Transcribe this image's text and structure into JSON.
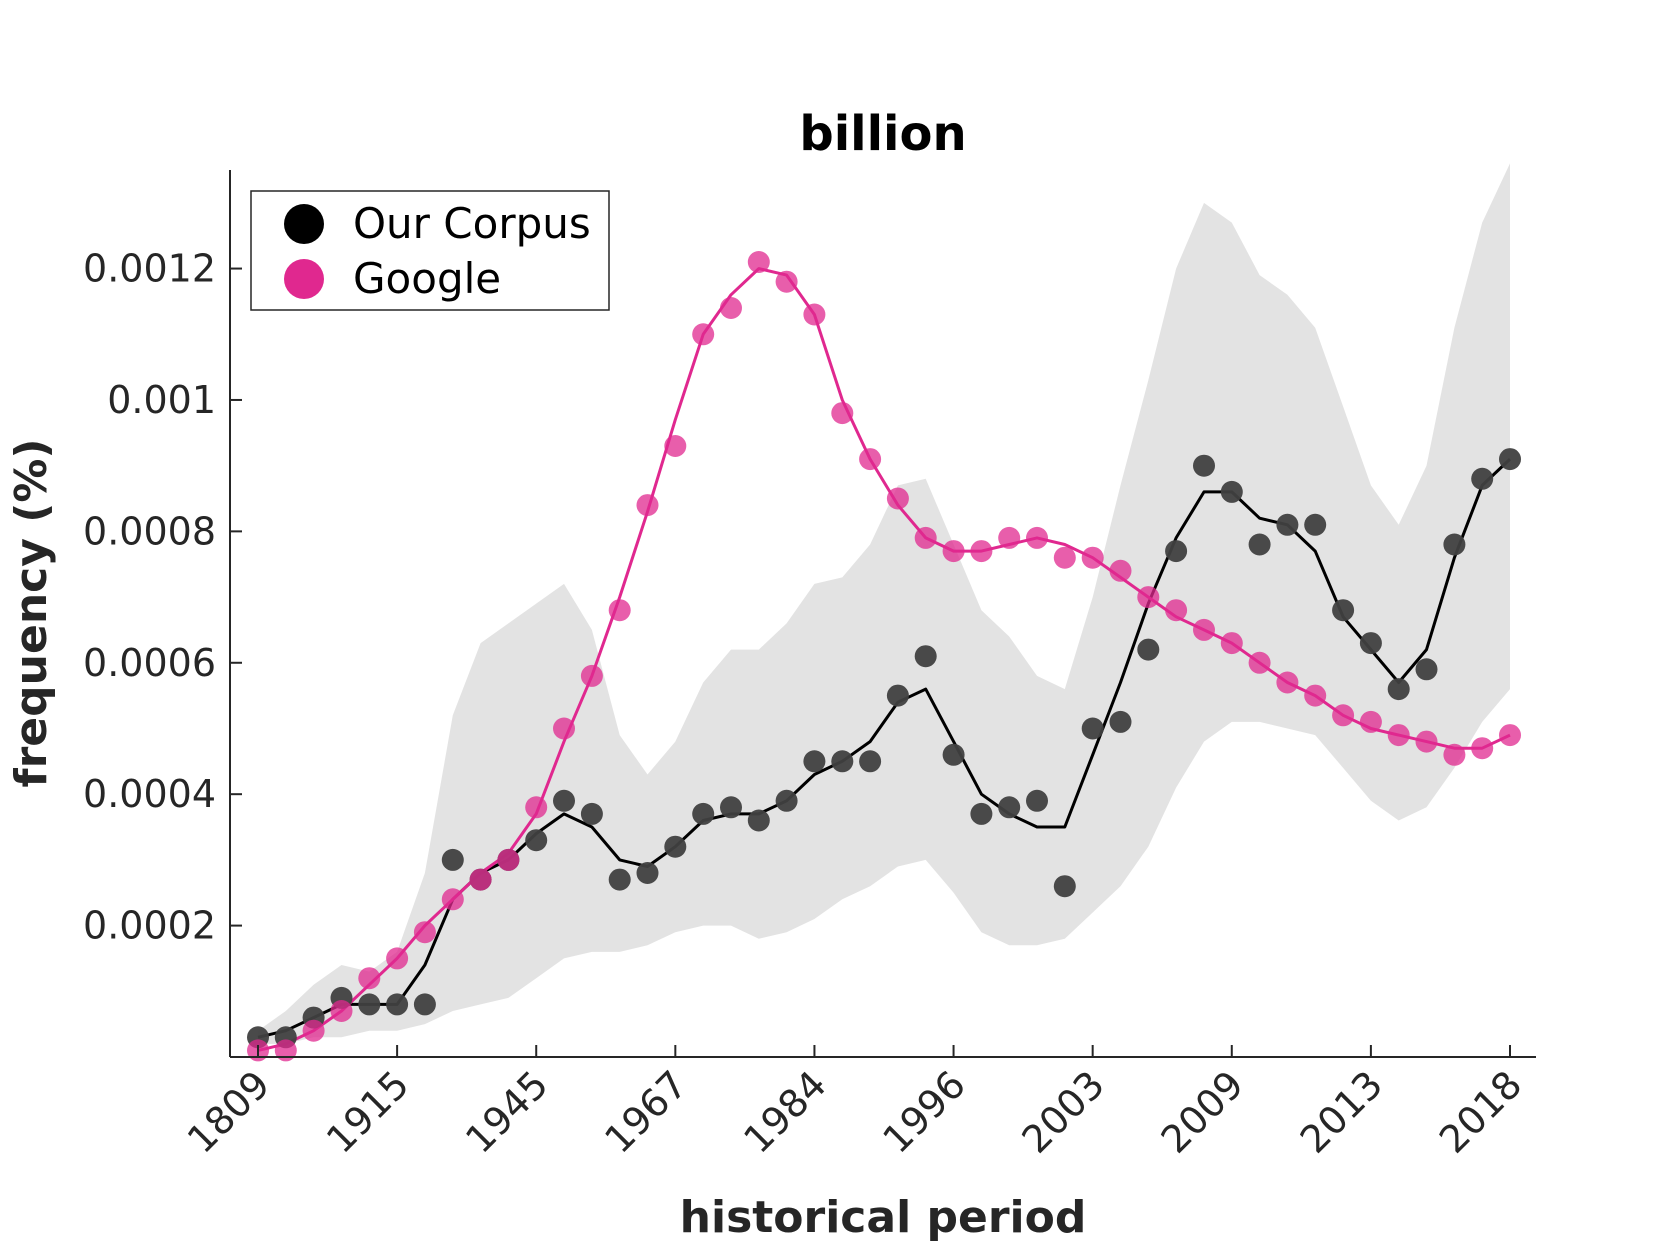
{
  "chart_data": {
    "type": "scatter",
    "title": "billion",
    "xlabel": "historical period",
    "ylabel": "frequency (%)",
    "x_tick_labels": [
      "1809",
      "1915",
      "1945",
      "1967",
      "1984",
      "1996",
      "2003",
      "2009",
      "2013",
      "2018"
    ],
    "y_ticks": [
      0.0002,
      0.0004,
      0.0006,
      0.0008,
      0.001,
      0.0012
    ],
    "y_tick_labels": [
      "0.0002",
      "0.0004",
      "0.0006",
      "0.0008",
      "0.001",
      "0.0012"
    ],
    "ylim": [
      0,
      0.00135
    ],
    "grid": false,
    "legend_position": "top-left",
    "colors": {
      "corpus": "#000000",
      "corpus_marker": "#404040",
      "google": "#e0288f",
      "band": "#e3e3e3"
    },
    "series": [
      {
        "name": "Our Corpus",
        "kind": "points",
        "values": [
          3e-05,
          3e-05,
          6e-05,
          9e-05,
          8e-05,
          8e-05,
          8e-05,
          0.0003,
          0.00027,
          0.0003,
          0.00033,
          0.00039,
          0.00037,
          0.00027,
          0.00028,
          0.00032,
          0.00037,
          0.00038,
          0.00036,
          0.00039,
          0.00045,
          0.00045,
          0.00045,
          0.00055,
          0.00061,
          0.00046,
          0.00037,
          0.00038,
          0.00039,
          0.00026,
          0.0005,
          0.00051,
          0.00062,
          0.00077,
          0.0009,
          0.00086,
          0.00078,
          0.00081,
          0.00081,
          0.00068,
          0.00063,
          0.00056,
          0.00059,
          0.00078,
          0.00088,
          0.00091
        ]
      },
      {
        "name": "Google",
        "kind": "points",
        "values": [
          1e-05,
          1e-05,
          4e-05,
          7e-05,
          0.00012,
          0.00015,
          0.00019,
          0.00024,
          0.00027,
          0.0003,
          0.00038,
          0.0005,
          0.00058,
          0.00068,
          0.00084,
          0.00093,
          0.0011,
          0.00114,
          0.00121,
          0.00118,
          0.00113,
          0.00098,
          0.00091,
          0.00085,
          0.00079,
          0.00077,
          0.00077,
          0.00079,
          0.00079,
          0.00076,
          0.00076,
          0.00074,
          0.0007,
          0.00068,
          0.00065,
          0.00063,
          0.0006,
          0.00057,
          0.00055,
          0.00052,
          0.00051,
          0.00049,
          0.00048,
          0.00046,
          0.00047,
          0.00049
        ]
      },
      {
        "kind": "line",
        "values": [
          3e-05,
          4e-05,
          6e-05,
          8e-05,
          8e-05,
          8e-05,
          0.00014,
          0.00024,
          0.00028,
          0.0003,
          0.00034,
          0.00037,
          0.00035,
          0.0003,
          0.00029,
          0.00032,
          0.00036,
          0.00037,
          0.00037,
          0.00039,
          0.00043,
          0.00045,
          0.00048,
          0.00054,
          0.00056,
          0.00048,
          0.0004,
          0.00037,
          0.00035,
          0.00035,
          0.00046,
          0.00057,
          0.00069,
          0.00079,
          0.00086,
          0.00086,
          0.00082,
          0.00081,
          0.00077,
          0.00067,
          0.00062,
          0.00057,
          0.00062,
          0.00076,
          0.00087,
          0.00091
        ]
      },
      {
        "kind": "line",
        "values": [
          1e-05,
          2e-05,
          4e-05,
          7e-05,
          0.00011,
          0.00015,
          0.0002,
          0.00024,
          0.00028,
          0.00031,
          0.00037,
          0.00048,
          0.00058,
          0.0007,
          0.00083,
          0.00097,
          0.0011,
          0.00116,
          0.0012,
          0.00119,
          0.00113,
          0.001,
          0.00091,
          0.00084,
          0.00079,
          0.00077,
          0.00077,
          0.00078,
          0.00079,
          0.00078,
          0.00076,
          0.00073,
          0.0007,
          0.00067,
          0.00065,
          0.00063,
          0.0006,
          0.00057,
          0.00055,
          0.00052,
          0.0005,
          0.00049,
          0.00048,
          0.00047,
          0.00047,
          0.00049
        ]
      },
      {
        "kind": "band-upper",
        "values": [
          4e-05,
          7e-05,
          0.00011,
          0.00014,
          0.00013,
          0.00016,
          0.00028,
          0.00052,
          0.00063,
          0.00066,
          0.00069,
          0.00072,
          0.00065,
          0.00049,
          0.00043,
          0.00048,
          0.00057,
          0.00062,
          0.00062,
          0.00066,
          0.00072,
          0.00073,
          0.00078,
          0.00087,
          0.00088,
          0.00078,
          0.00068,
          0.00064,
          0.00058,
          0.00056,
          0.0007,
          0.00087,
          0.00103,
          0.0012,
          0.0013,
          0.00127,
          0.00119,
          0.00116,
          0.00111,
          0.00099,
          0.00087,
          0.00081,
          0.0009,
          0.00111,
          0.00127,
          0.00136
        ]
      },
      {
        "kind": "band-lower",
        "values": [
          2e-05,
          2e-05,
          3e-05,
          3e-05,
          4e-05,
          4e-05,
          5e-05,
          7e-05,
          8e-05,
          9e-05,
          0.00012,
          0.00015,
          0.00016,
          0.00016,
          0.00017,
          0.00019,
          0.0002,
          0.0002,
          0.00018,
          0.00019,
          0.00021,
          0.00024,
          0.00026,
          0.00029,
          0.0003,
          0.00025,
          0.00019,
          0.00017,
          0.00017,
          0.00018,
          0.00022,
          0.00026,
          0.00032,
          0.00041,
          0.00048,
          0.00051,
          0.00051,
          0.0005,
          0.00049,
          0.00044,
          0.00039,
          0.00036,
          0.00038,
          0.00044,
          0.00051,
          0.00056
        ]
      }
    ]
  }
}
